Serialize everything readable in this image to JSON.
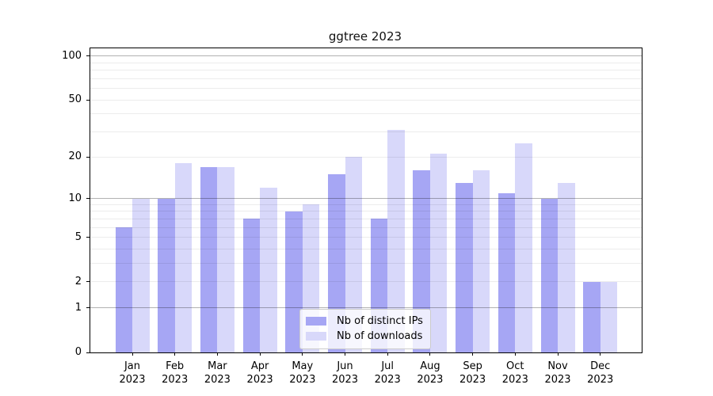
{
  "chart_data": {
    "type": "bar",
    "title": "ggtree 2023",
    "x_axis": {
      "categories": [
        "Jan",
        "Feb",
        "Mar",
        "Apr",
        "May",
        "Jun",
        "Jul",
        "Aug",
        "Sep",
        "Oct",
        "Nov",
        "Dec"
      ],
      "sub_label": "2023"
    },
    "y_axis": {
      "scale": "log1p",
      "tick_labels": [
        100,
        50,
        20,
        10,
        5,
        2,
        1,
        0
      ],
      "major_gridlines": [
        1,
        10,
        100
      ],
      "minor_gridlines": [
        2,
        3,
        4,
        5,
        6,
        7,
        8,
        9,
        20,
        30,
        40,
        50,
        60,
        70,
        80,
        90
      ],
      "ylim": [
        0,
        113
      ],
      "grid": true
    },
    "series": [
      {
        "name": "Nb of distinct IPs",
        "color": "#a6a6f4",
        "values": [
          6,
          10,
          17,
          7,
          8,
          15,
          7,
          16,
          13,
          11,
          10,
          2
        ]
      },
      {
        "name": "Nb of downloads",
        "color": "#d8d8fa",
        "values": [
          10,
          18,
          17,
          12,
          9,
          20,
          31,
          21,
          16,
          25,
          13,
          2
        ]
      }
    ],
    "legend": {
      "position": "lower-center",
      "items": [
        "Nb of distinct IPs",
        "Nb of downloads"
      ]
    }
  },
  "colors": {
    "background": "#ffffff",
    "spine": "#000000",
    "major_grid": "rgba(0,0,0,0.30)",
    "minor_grid": "rgba(0,0,0,0.075)",
    "legend_border": "#cccccc",
    "text": "#000000"
  }
}
